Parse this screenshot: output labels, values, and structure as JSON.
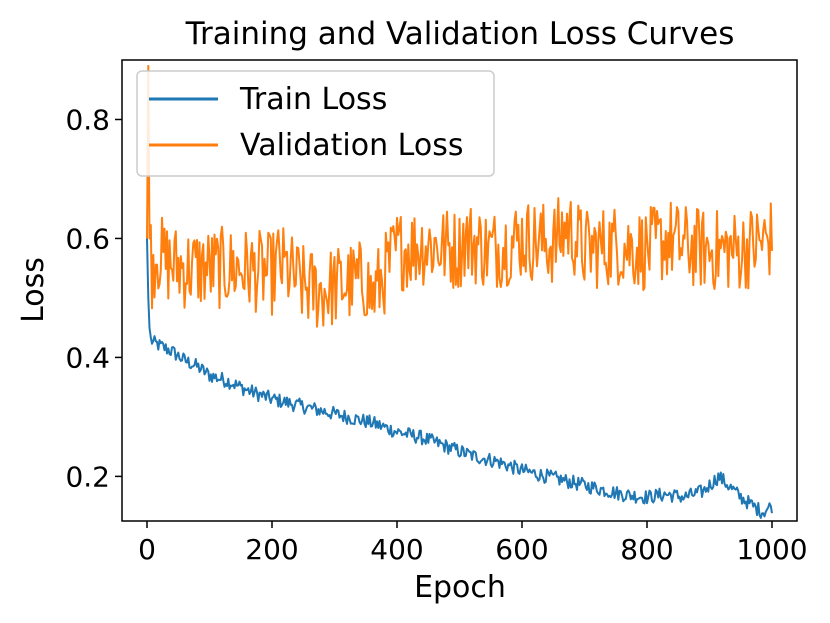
{
  "chart_data": {
    "type": "line",
    "title": "Training and Validation Loss Curves",
    "xlabel": "Epoch",
    "ylabel": "Loss",
    "xlim": [
      -40,
      1040
    ],
    "ylim": [
      0.125,
      0.9
    ],
    "xticks": [
      0,
      200,
      400,
      600,
      800,
      1000
    ],
    "xtick_labels": [
      "0",
      "200",
      "400",
      "600",
      "800",
      "1000"
    ],
    "yticks": [
      0.2,
      0.4,
      0.6,
      0.8
    ],
    "ytick_labels": [
      "0.2",
      "0.4",
      "0.6",
      "0.8"
    ],
    "grid": false,
    "legend_position": "upper-left",
    "series": [
      {
        "name": "Train Loss",
        "color": "#1f77b4",
        "x": [
          0,
          2,
          4,
          6,
          10,
          20,
          40,
          60,
          80,
          100,
          130,
          160,
          200,
          240,
          280,
          320,
          360,
          400,
          440,
          480,
          520,
          560,
          600,
          640,
          680,
          720,
          760,
          800,
          830,
          860,
          890,
          905,
          915,
          930,
          950,
          970,
          985,
          999
        ],
        "values": [
          0.6,
          0.5,
          0.45,
          0.43,
          0.425,
          0.42,
          0.41,
          0.395,
          0.385,
          0.37,
          0.36,
          0.345,
          0.33,
          0.32,
          0.31,
          0.3,
          0.29,
          0.275,
          0.265,
          0.25,
          0.235,
          0.225,
          0.21,
          0.2,
          0.19,
          0.18,
          0.17,
          0.165,
          0.17,
          0.165,
          0.175,
          0.19,
          0.2,
          0.185,
          0.165,
          0.15,
          0.14,
          0.15
        ]
      },
      {
        "name": "Validation Loss",
        "color": "#ff7f0e",
        "x": [
          0,
          2,
          4,
          8,
          15,
          30,
          60,
          100,
          150,
          200,
          210,
          250,
          280,
          300,
          350,
          360,
          400,
          450,
          500,
          505,
          550,
          600,
          650,
          672,
          700,
          750,
          800,
          835,
          850,
          900,
          950,
          999
        ],
        "values": [
          0.6,
          0.89,
          0.6,
          0.55,
          0.58,
          0.56,
          0.55,
          0.55,
          0.55,
          0.54,
          0.56,
          0.52,
          0.51,
          0.52,
          0.53,
          0.5,
          0.58,
          0.59,
          0.58,
          0.6,
          0.58,
          0.6,
          0.59,
          0.62,
          0.58,
          0.59,
          0.58,
          0.6,
          0.59,
          0.58,
          0.58,
          0.6
        ]
      }
    ]
  }
}
